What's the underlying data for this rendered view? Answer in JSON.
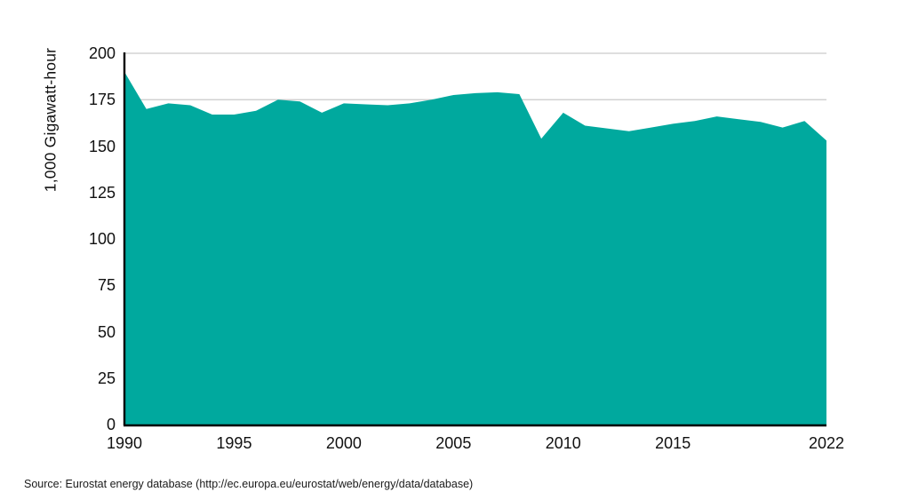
{
  "chart_data": {
    "type": "area",
    "title": "",
    "xlabel": "",
    "ylabel": "1,000 Gigawatt-hour",
    "x": [
      1990,
      1991,
      1992,
      1993,
      1994,
      1995,
      1996,
      1997,
      1998,
      1999,
      2000,
      2001,
      2002,
      2003,
      2004,
      2005,
      2006,
      2007,
      2008,
      2009,
      2010,
      2011,
      2012,
      2013,
      2014,
      2015,
      2016,
      2017,
      2018,
      2019,
      2020,
      2021,
      2022
    ],
    "values": [
      190,
      170,
      173,
      172,
      167,
      167,
      169,
      175,
      174,
      168,
      173,
      172.5,
      172,
      173,
      175,
      177.5,
      178.5,
      179,
      178,
      154,
      168,
      161,
      159.5,
      158,
      160,
      162,
      163.5,
      166,
      164.5,
      163,
      160,
      163.5,
      153
    ],
    "ylim": [
      0,
      200
    ],
    "yticks": [
      0,
      25,
      50,
      75,
      100,
      125,
      150,
      175,
      200
    ],
    "xticks": [
      1990,
      1995,
      2000,
      2005,
      2010,
      2015,
      2022
    ],
    "xlim": [
      1990,
      2022
    ],
    "grid": "horizontal",
    "legend": "none",
    "area_color": "#00a99e",
    "gridline_color": "#c9c9c9",
    "axis_color": "#000000",
    "text_color": "#111111"
  },
  "source_note": "Source: Eurostat energy database (http://ec.europa.eu/eurostat/web/energy/data/database)"
}
